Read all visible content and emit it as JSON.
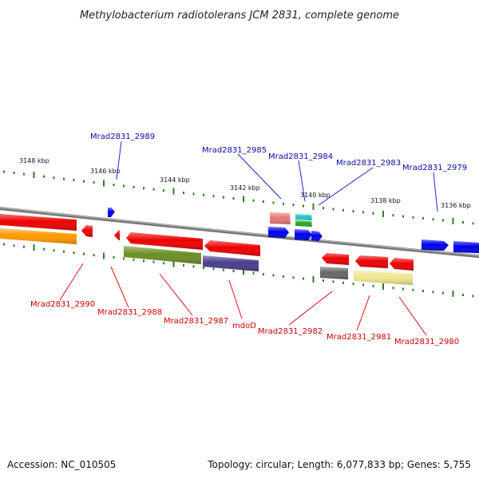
{
  "title": "Methylobacterium radiotolerans JCM 2831, complete genome",
  "footer": {
    "accession": "Accession: NC_010505",
    "summary": "Topology: circular; Length: 6,077,833 bp; Genes: 5,755"
  },
  "colors": {
    "forward_label": "#0a0aaa",
    "reverse_label": "#cc0000",
    "forward_line": "#2222dd",
    "reverse_line": "#dd1111",
    "backbone": "#888888",
    "tick": "#2e7d22"
  },
  "kbp_labels": [
    "3148 kbp",
    "3146 kbp",
    "3144 kbp",
    "3142 kbp",
    "3140 kbp",
    "3138 kbp",
    "3136 kbp"
  ],
  "forward_genes": [
    {
      "label": "Mrad2831_2989",
      "color": "#0000ee"
    },
    {
      "label": "Mrad2831_2985",
      "color": "#e87878"
    },
    {
      "label": "Mrad2831_2984",
      "color": "#20c8c8"
    },
    {
      "label": "Mrad2831_2983",
      "color": "#0000ee"
    },
    {
      "label": "Mrad2831_2979",
      "color": "#0000ee"
    },
    {
      "label": "",
      "color": "#0000ee"
    },
    {
      "label": "",
      "color": "#0000ee"
    },
    {
      "label": "",
      "color": "#22aa22"
    },
    {
      "label": "",
      "color": "#0000ee"
    }
  ],
  "reverse_genes": [
    {
      "label": "Mrad2831_2990",
      "color": "#ee0000"
    },
    {
      "label": "Mrad2831_2988",
      "color": "#ee0000"
    },
    {
      "label": "Mrad2831_2987",
      "color": "#ee0000"
    },
    {
      "label": "mdoD",
      "color": "#ee0000"
    },
    {
      "label": "Mrad2831_2982",
      "color": "#ee0000"
    },
    {
      "label": "Mrad2831_2981",
      "color": "#ee0000"
    },
    {
      "label": "Mrad2831_2980",
      "color": "#ee0000"
    },
    {
      "label": "",
      "color": "#ff9900"
    },
    {
      "label": "",
      "color": "#6b8e23"
    },
    {
      "label": "",
      "color": "#483d8b"
    },
    {
      "label": "",
      "color": "#666666"
    },
    {
      "label": "",
      "color": "#f0e68c"
    },
    {
      "label": "",
      "color": "#ee0000"
    }
  ]
}
